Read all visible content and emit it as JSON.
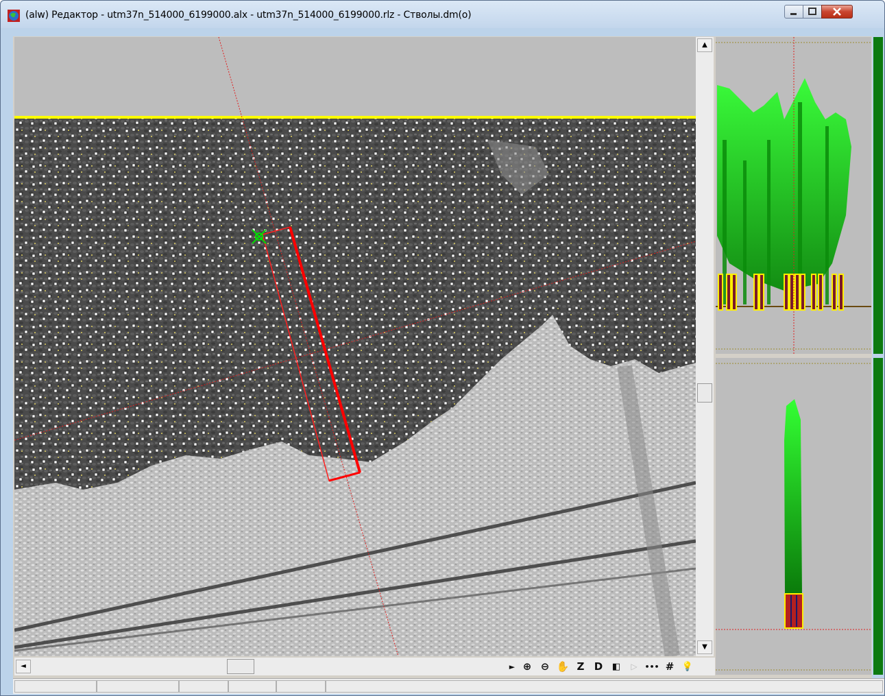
{
  "window": {
    "title": "(alw) Редактор - utm37n_514000_6199000.alx - utm37n_514000_6199000.rlz - Стволы.dm(o)",
    "buttons": {
      "minimize": "–",
      "maximize": "□",
      "close": "X"
    }
  },
  "scroll": {
    "up": "▲",
    "down": "▼",
    "left": "◄",
    "right": "►"
  },
  "toolbar": {
    "zoom_in": "⊕",
    "zoom_out": "⊖",
    "pan": "✋",
    "z_label": "Z",
    "d_label": "D",
    "prev": "◧",
    "next": "▷",
    "dashes": "•••",
    "grid": "#",
    "light": "💡"
  },
  "status": {
    "cells": [
      "",
      "",
      "",
      "",
      "",
      ""
    ]
  },
  "colors": {
    "accent_yellow": "#ffff00",
    "selection_red": "#ff0000",
    "canopy_green": "#00d000",
    "panel_green": "#0c7a10"
  }
}
